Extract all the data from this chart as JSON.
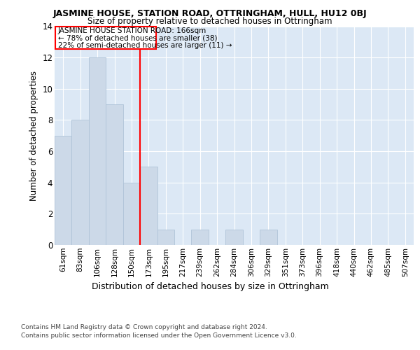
{
  "title": "JASMINE HOUSE, STATION ROAD, OTTRINGHAM, HULL, HU12 0BJ",
  "subtitle": "Size of property relative to detached houses in Ottringham",
  "xlabel": "Distribution of detached houses by size in Ottringham",
  "ylabel": "Number of detached properties",
  "categories": [
    "61sqm",
    "83sqm",
    "106sqm",
    "128sqm",
    "150sqm",
    "173sqm",
    "195sqm",
    "217sqm",
    "239sqm",
    "262sqm",
    "284sqm",
    "306sqm",
    "329sqm",
    "351sqm",
    "373sqm",
    "396sqm",
    "418sqm",
    "440sqm",
    "462sqm",
    "485sqm",
    "507sqm"
  ],
  "values": [
    7,
    8,
    12,
    9,
    4,
    5,
    1,
    0,
    1,
    0,
    1,
    0,
    1,
    0,
    0,
    0,
    0,
    0,
    0,
    0,
    0
  ],
  "bar_color": "#ccd9e8",
  "bar_edge_color": "#b0c4d8",
  "red_line_x": 4.5,
  "annotation_line1": "JASMINE HOUSE STATION ROAD: 166sqm",
  "annotation_line2": "← 78% of detached houses are smaller (38)",
  "annotation_line3": "22% of semi-detached houses are larger (11) →",
  "ylim": [
    0,
    14
  ],
  "yticks": [
    0,
    2,
    4,
    6,
    8,
    10,
    12,
    14
  ],
  "plot_bg_color": "#dce8f5",
  "footer_line1": "Contains HM Land Registry data © Crown copyright and database right 2024.",
  "footer_line2": "Contains public sector information licensed under the Open Government Licence v3.0."
}
